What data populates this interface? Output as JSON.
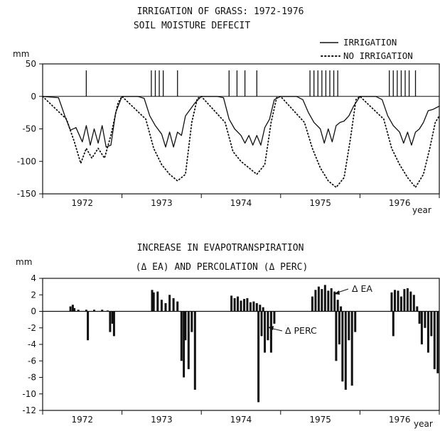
{
  "chart_data": [
    {
      "type": "line",
      "title": "IRRIGATION OF GRASS: 1972-1976",
      "subtitle": "SOIL MOISTURE DEFECIT",
      "ylabel": "mm",
      "xlabel": "year",
      "ylim": [
        -150,
        50
      ],
      "yticks": [
        50,
        0,
        -50,
        -100,
        -150
      ],
      "ytick_labels": [
        "50",
        "0",
        "-50",
        "-100",
        "-150"
      ],
      "categories": [
        "1972",
        "1973",
        "1974",
        "1975",
        "1976"
      ],
      "legend": {
        "placement": "top-right",
        "entries": [
          "IRRIGATION",
          "NO IRRIGATION"
        ]
      },
      "series": [
        {
          "name": "IRRIGATION",
          "style": "solid",
          "x": [
            0.0,
            0.2,
            0.28,
            0.35,
            0.42,
            0.5,
            0.55,
            0.6,
            0.65,
            0.7,
            0.75,
            0.8,
            0.86,
            0.92,
            1.0,
            1.2,
            1.28,
            1.35,
            1.42,
            1.5,
            1.55,
            1.6,
            1.65,
            1.7,
            1.75,
            1.8,
            1.86,
            1.92,
            2.0,
            2.2,
            2.28,
            2.35,
            2.42,
            2.5,
            2.55,
            2.6,
            2.65,
            2.7,
            2.75,
            2.8,
            2.86,
            2.92,
            3.0,
            3.2,
            3.28,
            3.35,
            3.42,
            3.5,
            3.55,
            3.6,
            3.65,
            3.7,
            3.75,
            3.8,
            3.86,
            3.92,
            4.0,
            4.2,
            4.28,
            4.35,
            4.42,
            4.5,
            4.55,
            4.6,
            4.65,
            4.7,
            4.75,
            4.8,
            4.86,
            4.92,
            5.0
          ],
          "y": [
            0,
            -2,
            -30,
            -52,
            -48,
            -70,
            -45,
            -75,
            -50,
            -72,
            -45,
            -78,
            -75,
            -25,
            0,
            0,
            -3,
            -30,
            -45,
            -58,
            -78,
            -55,
            -78,
            -55,
            -60,
            -30,
            -20,
            -10,
            0,
            0,
            -2,
            -35,
            -50,
            -60,
            -72,
            -60,
            -75,
            -60,
            -75,
            -48,
            -35,
            -5,
            0,
            0,
            -5,
            -25,
            -40,
            -50,
            -72,
            -50,
            -70,
            -45,
            -40,
            -38,
            -30,
            -15,
            0,
            0,
            -5,
            -30,
            -45,
            -55,
            -72,
            -55,
            -75,
            -55,
            -50,
            -40,
            -22,
            -20,
            -15
          ]
        },
        {
          "name": "NO IRRIGATION",
          "style": "dotted",
          "x": [
            0.0,
            0.3,
            0.4,
            0.48,
            0.55,
            0.62,
            0.7,
            0.78,
            0.86,
            0.95,
            1.0,
            1.3,
            1.4,
            1.5,
            1.6,
            1.7,
            1.8,
            1.88,
            1.95,
            2.0,
            2.3,
            2.4,
            2.5,
            2.6,
            2.7,
            2.8,
            2.88,
            2.95,
            3.0,
            3.3,
            3.4,
            3.5,
            3.6,
            3.7,
            3.8,
            3.88,
            3.95,
            4.0,
            4.3,
            4.4,
            4.5,
            4.6,
            4.7,
            4.8,
            4.88,
            4.95,
            5.0
          ],
          "y": [
            0,
            -35,
            -70,
            -103,
            -80,
            -95,
            -80,
            -95,
            -60,
            -10,
            0,
            -35,
            -80,
            -105,
            -120,
            -130,
            -120,
            -40,
            -3,
            0,
            -40,
            -85,
            -100,
            -110,
            -120,
            -105,
            -40,
            -2,
            0,
            -40,
            -80,
            -110,
            -130,
            -140,
            -125,
            -65,
            -5,
            0,
            -35,
            -80,
            -105,
            -125,
            -140,
            -120,
            -80,
            -40,
            -30
          ]
        }
      ],
      "irrigation_events_x": [
        0.55,
        1.37,
        1.42,
        1.47,
        1.52,
        1.7,
        2.35,
        2.45,
        2.55,
        2.7,
        3.37,
        3.42,
        3.47,
        3.52,
        3.57,
        3.62,
        3.67,
        3.72,
        4.37,
        4.42,
        4.47,
        4.52,
        4.57,
        4.62,
        4.7
      ],
      "irrigation_event_height": 40,
      "grid": false
    },
    {
      "type": "bar",
      "title": "INCREASE IN EVAPOTRANSPIRATION",
      "subtitle": "(Δ EA) AND PERCOLATION (Δ PERC)",
      "ylabel": "mm",
      "xlabel": "year",
      "ylim": [
        -12,
        4
      ],
      "yticks": [
        4,
        2,
        0,
        -2,
        -4,
        -6,
        -8,
        -10,
        -12
      ],
      "ytick_labels": [
        "4",
        "2",
        "0",
        "-2",
        "-4",
        "-6",
        "-8",
        "-10",
        "-12"
      ],
      "categories": [
        "1972",
        "1973",
        "1974",
        "1975",
        "1976"
      ],
      "annotations": [
        "Δ EA",
        "Δ PERC"
      ],
      "series": [
        {
          "name": "Δ EA",
          "x": [
            0.35,
            0.38,
            0.4,
            0.45,
            0.55,
            0.65,
            0.75,
            0.82,
            1.38,
            1.4,
            1.45,
            1.5,
            1.55,
            1.6,
            1.65,
            1.7,
            2.38,
            2.42,
            2.46,
            2.5,
            2.54,
            2.58,
            2.62,
            2.66,
            2.7,
            2.74,
            2.78,
            3.4,
            3.44,
            3.48,
            3.52,
            3.56,
            3.6,
            3.64,
            3.68,
            3.72,
            3.76,
            4.4,
            4.44,
            4.48,
            4.52,
            4.56,
            4.6,
            4.64,
            4.68,
            4.72
          ],
          "y": [
            0.6,
            0.8,
            0.4,
            0.2,
            0.2,
            0.2,
            0.2,
            0.1,
            2.6,
            2.3,
            2.4,
            1.4,
            1.0,
            2.0,
            1.6,
            1.2,
            1.9,
            1.6,
            1.8,
            1.3,
            1.5,
            1.6,
            1.1,
            1.2,
            1.0,
            0.8,
            0.5,
            1.8,
            2.6,
            3.0,
            2.7,
            3.2,
            2.5,
            2.8,
            2.4,
            1.4,
            0.6,
            2.3,
            2.6,
            2.5,
            1.8,
            2.7,
            2.8,
            2.4,
            2.0,
            0.6
          ]
        },
        {
          "name": "Δ PERC",
          "x": [
            0.57,
            0.85,
            0.88,
            0.9,
            1.75,
            1.78,
            1.8,
            1.84,
            1.88,
            1.92,
            2.72,
            2.76,
            2.8,
            2.84,
            2.88,
            2.92,
            3.7,
            3.74,
            3.78,
            3.82,
            3.86,
            3.9,
            3.94,
            4.42,
            4.75,
            4.78,
            4.82,
            4.86,
            4.9,
            4.94,
            4.98
          ],
          "y": [
            -3.5,
            -2.5,
            -1.5,
            -3.0,
            -6.0,
            -8.0,
            -3.5,
            -7.0,
            -2.5,
            -9.5,
            -11.0,
            -3.0,
            -5.0,
            -3.5,
            -5.0,
            -1.5,
            -6.0,
            -4.0,
            -8.5,
            -9.5,
            -3.5,
            -9.0,
            -2.5,
            -3.0,
            -1.5,
            -4.0,
            -2.0,
            -5.0,
            -3.0,
            -7.0,
            -7.5
          ]
        }
      ],
      "grid": false
    }
  ]
}
